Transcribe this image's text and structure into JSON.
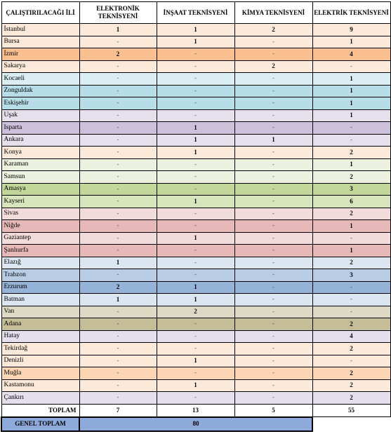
{
  "headers": [
    "ÇALIŞTIRILACAĞI İLİ",
    "ELEKTRONİK TEKNİSYENİ",
    "İNŞAAT TEKNİSYENİ",
    "KİMYA TEKNİSYENİ",
    "ELEKTRİK TEKNİSYENİ"
  ],
  "rows": [
    {
      "city": "İstanbul",
      "values": [
        "1",
        "1",
        "2",
        "9"
      ],
      "color": "#fde9d9"
    },
    {
      "city": "Bursa",
      "values": [
        "-",
        "1",
        "-",
        "1"
      ],
      "color": "#fde9d9"
    },
    {
      "city": "İzmir",
      "values": [
        "2",
        "-",
        "-",
        "4"
      ],
      "color": "#fac090"
    },
    {
      "city": "Sakarya",
      "values": [
        "-",
        "-",
        "2",
        "-"
      ],
      "color": "#fde9d9"
    },
    {
      "city": "Kocaeli",
      "values": [
        "-",
        "-",
        "-",
        "1"
      ],
      "color": "#daeef3"
    },
    {
      "city": "Zonguldak",
      "values": [
        "-",
        "-",
        "-",
        "1"
      ],
      "color": "#b7dee8"
    },
    {
      "city": "Eskişehir",
      "values": [
        "-",
        "-",
        "-",
        "1"
      ],
      "color": "#b7dee8"
    },
    {
      "city": "Uşak",
      "values": [
        "-",
        "-",
        "-",
        "1"
      ],
      "color": "#e5e0ec"
    },
    {
      "city": "Isparta",
      "values": [
        "-",
        "1",
        "-",
        "-"
      ],
      "color": "#ccc0da"
    },
    {
      "city": "Ankara",
      "values": [
        "-",
        "1",
        "1",
        "-"
      ],
      "color": "#e5e0ec"
    },
    {
      "city": "Konya",
      "values": [
        "-",
        "1",
        "-",
        "2"
      ],
      "color": "#fde9d9"
    },
    {
      "city": "Karaman",
      "values": [
        "-",
        "-",
        "-",
        "1"
      ],
      "color": "#ebf1de"
    },
    {
      "city": "Samsun",
      "values": [
        "-",
        "-",
        "-",
        "2"
      ],
      "color": "#ebf1de"
    },
    {
      "city": "Amasya",
      "values": [
        "-",
        "-",
        "-",
        "3"
      ],
      "color": "#c4d79b"
    },
    {
      "city": "Kayseri",
      "values": [
        "-",
        "1",
        "-",
        "6"
      ],
      "color": "#d8e4bc"
    },
    {
      "city": "Sivas",
      "values": [
        "-",
        "-",
        "-",
        "2"
      ],
      "color": "#f2dcdb"
    },
    {
      "city": "Niğde",
      "values": [
        "-",
        "-",
        "-",
        "1"
      ],
      "color": "#e6b8b7"
    },
    {
      "city": "Gaziantep",
      "values": [
        "-",
        "1",
        "-",
        "-"
      ],
      "color": "#f2dcdb"
    },
    {
      "city": "Şanlıurfa",
      "values": [
        "-",
        "-",
        "-",
        "1"
      ],
      "color": "#e6b8b7"
    },
    {
      "city": "Elazığ",
      "values": [
        "1",
        "-",
        "-",
        "2"
      ],
      "color": "#dce6f1"
    },
    {
      "city": "Trabzon",
      "values": [
        "-",
        "-",
        "-",
        "3"
      ],
      "color": "#b8cce4"
    },
    {
      "city": "Erzurum",
      "values": [
        "2",
        "1",
        "-",
        "-"
      ],
      "color": "#95b3d7"
    },
    {
      "city": "Batman",
      "values": [
        "1",
        "1",
        "-",
        "-"
      ],
      "color": "#dce6f1"
    },
    {
      "city": "Van",
      "values": [
        "-",
        "2",
        "-",
        "-"
      ],
      "color": "#ddd9c4"
    },
    {
      "city": "Adana",
      "values": [
        "-",
        "-",
        "-",
        "2"
      ],
      "color": "#c4bd97"
    },
    {
      "city": "Hatay",
      "values": [
        "-",
        "-",
        "-",
        "4"
      ],
      "color": "#e4dfec"
    },
    {
      "city": "Tekirdağ",
      "values": [
        "-",
        "-",
        "-",
        "2"
      ],
      "color": "#fde9d9"
    },
    {
      "city": "Denizli",
      "values": [
        "-",
        "1",
        "-",
        "-"
      ],
      "color": "#fde9d9"
    },
    {
      "city": "Muğla",
      "values": [
        "-",
        "-",
        "-",
        "2"
      ],
      "color": "#fcd5b4"
    },
    {
      "city": "Kastamonu",
      "values": [
        "-",
        "1",
        "-",
        "2"
      ],
      "color": "#fde9d9"
    },
    {
      "city": "Çankırı",
      "values": [
        "-",
        "-",
        "-",
        "2"
      ],
      "color": "#e4dfec"
    }
  ],
  "totals": {
    "label": "TOPLAM",
    "values": [
      "7",
      "13",
      "5",
      "55"
    ]
  },
  "grand_total": {
    "label": "GENEL TOPLAM",
    "value": "80"
  }
}
